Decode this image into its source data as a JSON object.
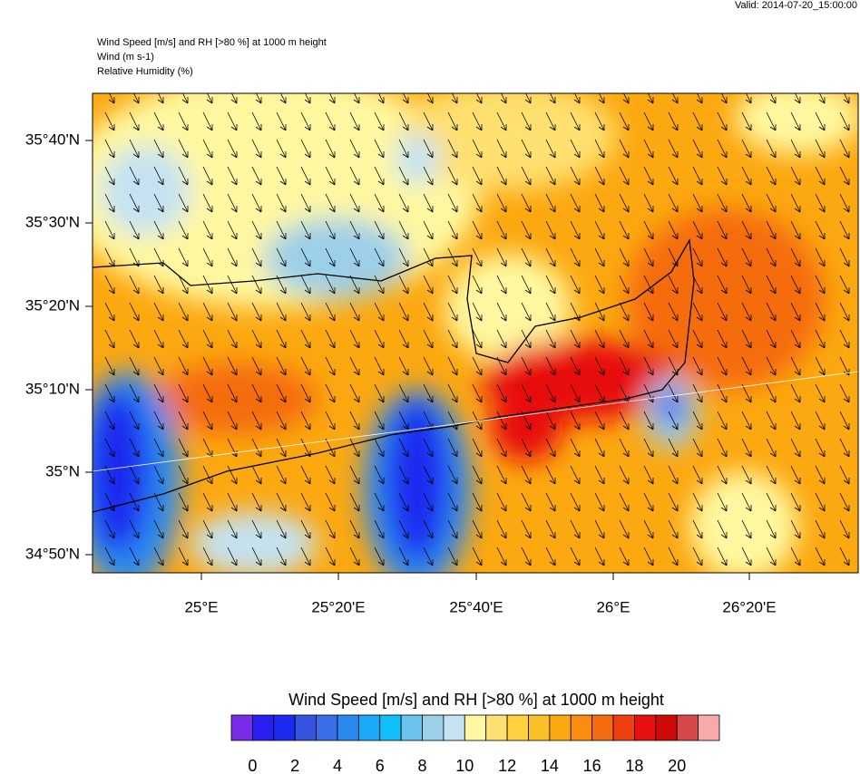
{
  "header": {
    "valid": "Valid: 2014-07-20_15:00:00",
    "lines": [
      "Wind Speed [m/s] and RH [>80 %] at 1000 m height",
      "Wind   (m s-1)",
      "Relative Humidity   (%)"
    ]
  },
  "map": {
    "lat_labels": [
      "35°40'N",
      "35°30'N",
      "35°20'N",
      "35°10'N",
      "35°N",
      "34°50'N"
    ],
    "lon_labels": [
      "25°E",
      "25°20'E",
      "25°40'E",
      "26°E",
      "26°20'E"
    ]
  },
  "colorbar": {
    "title": "Wind Speed [m/s] and RH [>80 %] at 1000 m height",
    "colors": [
      "#7a2be8",
      "#2a1ef0",
      "#1a2af0",
      "#3355e0",
      "#3a6ee8",
      "#2a8af0",
      "#1aa8f8",
      "#10c0f8",
      "#6cc4ee",
      "#9ccfe8",
      "#c4e2f2",
      "#fff8a0",
      "#ffe070",
      "#ffd040",
      "#fbbf28",
      "#fca810",
      "#fb8c10",
      "#f56c10",
      "#f04010",
      "#e81010",
      "#cc0a0a",
      "#d84848",
      "#f8aaaa"
    ],
    "ticks": [
      0,
      2,
      4,
      6,
      8,
      10,
      12,
      14,
      16,
      18,
      20
    ]
  }
}
